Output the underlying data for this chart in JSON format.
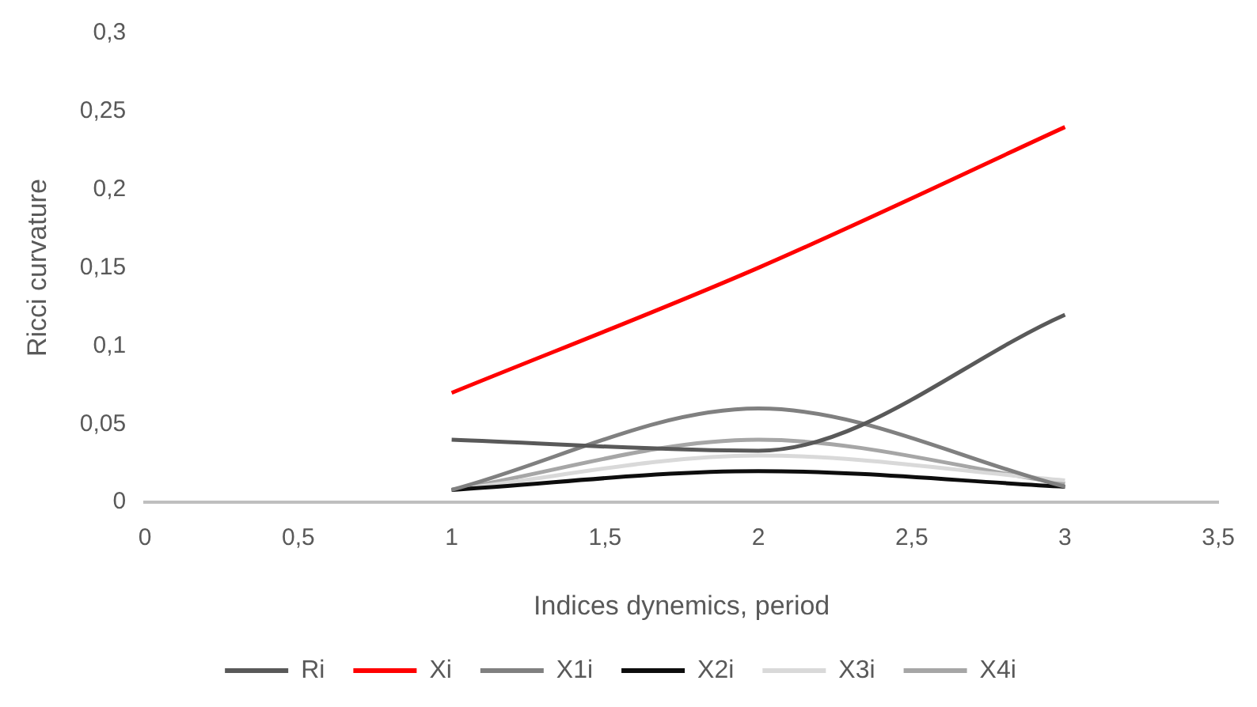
{
  "chart_data": {
    "type": "line",
    "xlabel": "Indices dynemics, period",
    "ylabel": "Ricci curvature",
    "x": [
      1,
      2,
      3
    ],
    "series": [
      {
        "name": "Ri",
        "color": "#595959",
        "values": [
          0.04,
          0.033,
          0.12
        ]
      },
      {
        "name": "Xi",
        "color": "#ff0000",
        "values": [
          0.07,
          0.15,
          0.24
        ]
      },
      {
        "name": "X1i",
        "color": "#808080",
        "values": [
          0.008,
          0.06,
          0.01
        ]
      },
      {
        "name": "X2i",
        "color": "#0d0d0d",
        "values": [
          0.008,
          0.02,
          0.01
        ]
      },
      {
        "name": "X3i",
        "color": "#d9d9d9",
        "values": [
          0.008,
          0.03,
          0.014
        ]
      },
      {
        "name": "X4i",
        "color": "#a6a6a6",
        "values": [
          0.008,
          0.04,
          0.012
        ]
      }
    ],
    "xlim": [
      0,
      3.5
    ],
    "xticks": [
      0,
      {
        "value": 0.5,
        "label": "0,5"
      },
      1,
      {
        "value": 1.5,
        "label": "1,5"
      },
      2,
      {
        "value": 2.5,
        "label": "2,5"
      },
      3,
      {
        "value": 3.5,
        "label": "3,5"
      }
    ],
    "ylim": [
      0,
      0.3
    ],
    "yticks": [
      0,
      {
        "value": 0.05,
        "label": "0,05"
      },
      {
        "value": 0.1,
        "label": "0,1"
      },
      {
        "value": 0.15,
        "label": "0,15"
      },
      {
        "value": 0.2,
        "label": "0,2"
      },
      {
        "value": 0.25,
        "label": "0,25"
      },
      {
        "value": 0.3,
        "label": "0,3"
      }
    ],
    "grid": false,
    "legend": "bottom",
    "marker": "none",
    "line_style": "solid"
  }
}
